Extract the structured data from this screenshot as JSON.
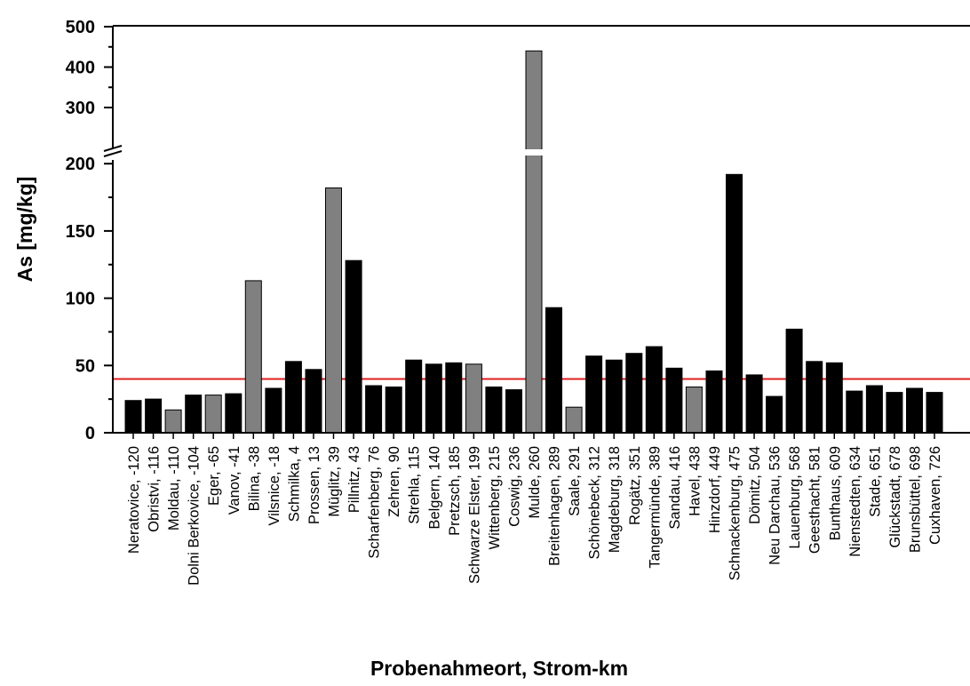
{
  "chart_data": {
    "type": "bar",
    "xlabel": "Probenahmeort, Strom-km",
    "ylabel": "As [mg/kg]",
    "y_axis_break": {
      "from": 200,
      "to": 300
    },
    "y_ticks": [
      0,
      50,
      100,
      150,
      200,
      300,
      400,
      500
    ],
    "reference_line": {
      "value": 40,
      "color": "#e02020"
    },
    "colors": {
      "main_river": "#000000",
      "tributary": "#808080"
    },
    "categories": [
      {
        "label": "Neratovice, -120",
        "value": 24,
        "group": "main_river"
      },
      {
        "label": "Obristvi, -116",
        "value": 25,
        "group": "main_river"
      },
      {
        "label": "Moldau, -110",
        "value": 17,
        "group": "tributary"
      },
      {
        "label": "Dolni Berkovice, -104",
        "value": 28,
        "group": "main_river"
      },
      {
        "label": "Eger, -65",
        "value": 28,
        "group": "tributary"
      },
      {
        "label": "Vanov, -41",
        "value": 29,
        "group": "main_river"
      },
      {
        "label": "Bilina, -38",
        "value": 113,
        "group": "tributary"
      },
      {
        "label": "Vilsnice, -18",
        "value": 33,
        "group": "main_river"
      },
      {
        "label": "Schmilka, 4",
        "value": 53,
        "group": "main_river"
      },
      {
        "label": "Prossen, 13",
        "value": 47,
        "group": "main_river"
      },
      {
        "label": "Müglitz, 39",
        "value": 182,
        "group": "tributary"
      },
      {
        "label": "Pillnitz, 43",
        "value": 128,
        "group": "main_river"
      },
      {
        "label": "Scharfenberg, 76",
        "value": 35,
        "group": "main_river"
      },
      {
        "label": "Zehren, 90",
        "value": 34,
        "group": "main_river"
      },
      {
        "label": "Strehla, 115",
        "value": 54,
        "group": "main_river"
      },
      {
        "label": "Belgern, 140",
        "value": 51,
        "group": "main_river"
      },
      {
        "label": "Pretzsch, 185",
        "value": 52,
        "group": "main_river"
      },
      {
        "label": "Schwarze Elster, 199",
        "value": 51,
        "group": "tributary"
      },
      {
        "label": "Wittenberg, 215",
        "value": 34,
        "group": "main_river"
      },
      {
        "label": "Coswig, 236",
        "value": 32,
        "group": "main_river"
      },
      {
        "label": "Mulde, 260",
        "value": 440,
        "group": "tributary"
      },
      {
        "label": "Breitenhagen, 289",
        "value": 93,
        "group": "main_river"
      },
      {
        "label": "Saale, 291",
        "value": 19,
        "group": "tributary"
      },
      {
        "label": "Schönebeck, 312",
        "value": 57,
        "group": "main_river"
      },
      {
        "label": "Magdeburg, 318",
        "value": 54,
        "group": "main_river"
      },
      {
        "label": "Rogätz, 351",
        "value": 59,
        "group": "main_river"
      },
      {
        "label": "Tangermünde, 389",
        "value": 64,
        "group": "main_river"
      },
      {
        "label": "Sandau, 416",
        "value": 48,
        "group": "main_river"
      },
      {
        "label": "Havel, 438",
        "value": 34,
        "group": "tributary"
      },
      {
        "label": "Hinzdorf, 449",
        "value": 46,
        "group": "main_river"
      },
      {
        "label": "Schnackenburg, 475",
        "value": 192,
        "group": "main_river"
      },
      {
        "label": "Dömitz, 504",
        "value": 43,
        "group": "main_river"
      },
      {
        "label": "Neu Darchau, 536",
        "value": 27,
        "group": "main_river"
      },
      {
        "label": "Lauenburg, 568",
        "value": 77,
        "group": "main_river"
      },
      {
        "label": "Geesthacht, 581",
        "value": 53,
        "group": "main_river"
      },
      {
        "label": "Bunthaus, 609",
        "value": 52,
        "group": "main_river"
      },
      {
        "label": "Nienstedten, 634",
        "value": 31,
        "group": "main_river"
      },
      {
        "label": "Stade, 651",
        "value": 35,
        "group": "main_river"
      },
      {
        "label": "Glückstadt, 678",
        "value": 30,
        "group": "main_river"
      },
      {
        "label": "Brunsbüttel, 698",
        "value": 33,
        "group": "main_river"
      },
      {
        "label": "Cuxhaven, 726",
        "value": 30,
        "group": "main_river"
      }
    ]
  }
}
